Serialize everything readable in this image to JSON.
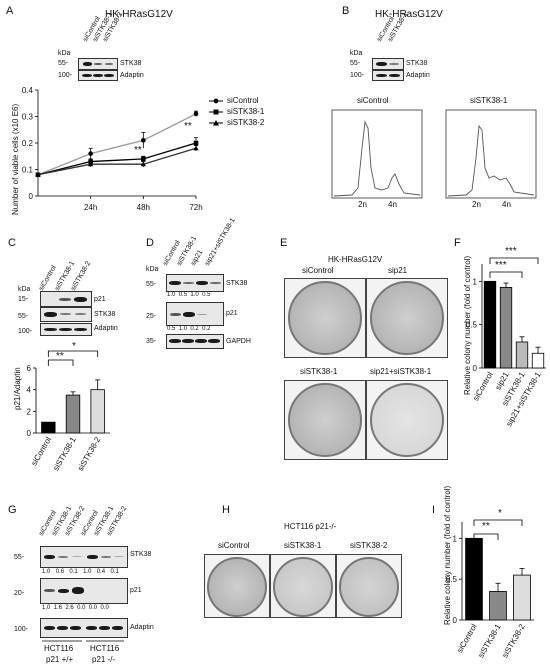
{
  "panels": {
    "A": "A",
    "B": "B",
    "C": "C",
    "D": "D",
    "E": "E",
    "F": "F",
    "G": "G",
    "H": "H",
    "I": "I"
  },
  "panel_a": {
    "title": "HK-HRasG12V",
    "kda": "kDa",
    "lanes": [
      "siControl",
      "siSTK38-1",
      "siSTK38-2"
    ],
    "markers": [
      "55-",
      "100-"
    ],
    "proteins": [
      "STK38",
      "Adaptin"
    ],
    "legend": [
      "siControl",
      "siSTK38-1",
      "siSTK38-2"
    ],
    "sig1": "**",
    "sig2": "**"
  },
  "panel_b": {
    "title": "HK-HRasG12V",
    "kda": "kDa",
    "lanes": [
      "siControl",
      "siSTK38-1"
    ],
    "markers": [
      "55-",
      "100-"
    ],
    "proteins": [
      "STK38",
      "Adaptin"
    ],
    "hist_titles": [
      "siControl",
      "siSTK38-1"
    ],
    "hist_ticks": [
      "2n",
      "4n"
    ]
  },
  "panel_c": {
    "kda": "kDa",
    "lanes": [
      "siControl",
      "siSTK38-1",
      "siSTK38-2"
    ],
    "markers": [
      "15-",
      "55-",
      "100-"
    ],
    "proteins": [
      "p21",
      "STK38",
      "Adaptin"
    ],
    "sig1": "**",
    "sig2": "*"
  },
  "panel_d": {
    "kda": "kDa",
    "lanes": [
      "siControl",
      "siSTK38-1",
      "sip21",
      "sip21+siSTK38-1"
    ],
    "markers": [
      "55-",
      "25-",
      "35-"
    ],
    "proteins": [
      "STK38",
      "p21",
      "GAPDH"
    ],
    "quant_stk38": [
      "1.0",
      "0.5",
      "1.0",
      "0.5"
    ],
    "quant_p21": [
      "0.5",
      "1.0",
      "0.2",
      "0.2"
    ]
  },
  "panel_e": {
    "title": "HK-HRasG12V",
    "dishes": [
      "siControl",
      "sip21",
      "siSTK38-1",
      "sip21+siSTK38-1"
    ]
  },
  "panel_f": {
    "sig": [
      "***",
      "***",
      "***"
    ]
  },
  "panel_g": {
    "lanes": [
      "siControl",
      "siSTK38-1",
      "siSTK38-2",
      "siControl",
      "siSTK38-1",
      "siSTK38-2"
    ],
    "markers": [
      "55-",
      "20-",
      "100-"
    ],
    "proteins": [
      "STK38",
      "p21",
      "Adaptin"
    ],
    "quant_stk38": [
      "1.0",
      "0.6",
      "0.1",
      "1.0",
      "0.4",
      "0.1"
    ],
    "quant_p21": [
      "1.0",
      "1.6",
      "2.6",
      "0.0",
      "0.0",
      "0.0"
    ],
    "groups": [
      {
        "line1": "HCT116",
        "line2": "p21 +/+"
      },
      {
        "line1": "HCT116",
        "line2": "p21 -/-"
      }
    ]
  },
  "panel_h": {
    "title": "HCT116 p21-/-",
    "dishes": [
      "siControl",
      "siSTK38-1",
      "siSTK38-2"
    ]
  },
  "panel_i": {
    "sig": [
      "**",
      "*"
    ]
  },
  "chart_data": [
    {
      "id": "A",
      "type": "line",
      "categories": [
        "24h",
        "48h",
        "72h"
      ],
      "x": [
        0,
        24,
        48,
        72
      ],
      "series": [
        {
          "name": "siControl",
          "values": [
            0.08,
            0.16,
            0.21,
            0.31
          ],
          "errors": [
            0.005,
            0.02,
            0.03,
            0.01
          ],
          "color": "#999999"
        },
        {
          "name": "siSTK38-1",
          "values": [
            0.08,
            0.13,
            0.14,
            0.2
          ],
          "errors": [
            0.005,
            0.01,
            0.01,
            0.02
          ],
          "color": "#000000"
        },
        {
          "name": "siSTK38-2",
          "values": [
            0.08,
            0.12,
            0.12,
            0.18
          ],
          "errors": [
            0.005,
            0.01,
            0.01,
            0.01
          ],
          "color": "#333333"
        }
      ],
      "ylabel": "Number of viable cells (x10 E6)",
      "yticks": [
        "0",
        "0.1",
        "0.2",
        "0.3",
        "0.4"
      ],
      "ylim": [
        0,
        0.4
      ]
    },
    {
      "id": "C",
      "type": "bar",
      "categories": [
        "siControl",
        "siSTK38-1",
        "siSTK38-2"
      ],
      "values": [
        1.0,
        3.5,
        4.0
      ],
      "errors": [
        0.0,
        0.3,
        0.9
      ],
      "colors": [
        "#000000",
        "#888888",
        "#dddddd"
      ],
      "ylabel": "p21/Adaptin",
      "yticks": [
        "0",
        "2",
        "4",
        "6"
      ],
      "ylim": [
        0,
        6
      ]
    },
    {
      "id": "F",
      "type": "bar",
      "categories": [
        "siControl",
        "sip21",
        "siSTK38-1",
        "sip21+siSTK38-1"
      ],
      "values": [
        1.0,
        0.93,
        0.3,
        0.17
      ],
      "errors": [
        0.0,
        0.05,
        0.06,
        0.07
      ],
      "colors": [
        "#000000",
        "#888888",
        "#bbbbbb",
        "#ffffff"
      ],
      "ylabel": "Relative colony number (fold of control)",
      "yticks": [
        "0",
        "0.5",
        "1"
      ],
      "ylim": [
        0,
        1.2
      ]
    },
    {
      "id": "I",
      "type": "bar",
      "categories": [
        "siControl",
        "siSTK38-1",
        "siSTK38-2"
      ],
      "values": [
        1.0,
        0.35,
        0.55
      ],
      "errors": [
        0.0,
        0.1,
        0.08
      ],
      "colors": [
        "#000000",
        "#888888",
        "#dddddd"
      ],
      "ylabel": "Relative colony number (fold of control)",
      "yticks": [
        "0",
        "0.5",
        "1"
      ],
      "ylim": [
        0,
        1.2
      ]
    }
  ]
}
